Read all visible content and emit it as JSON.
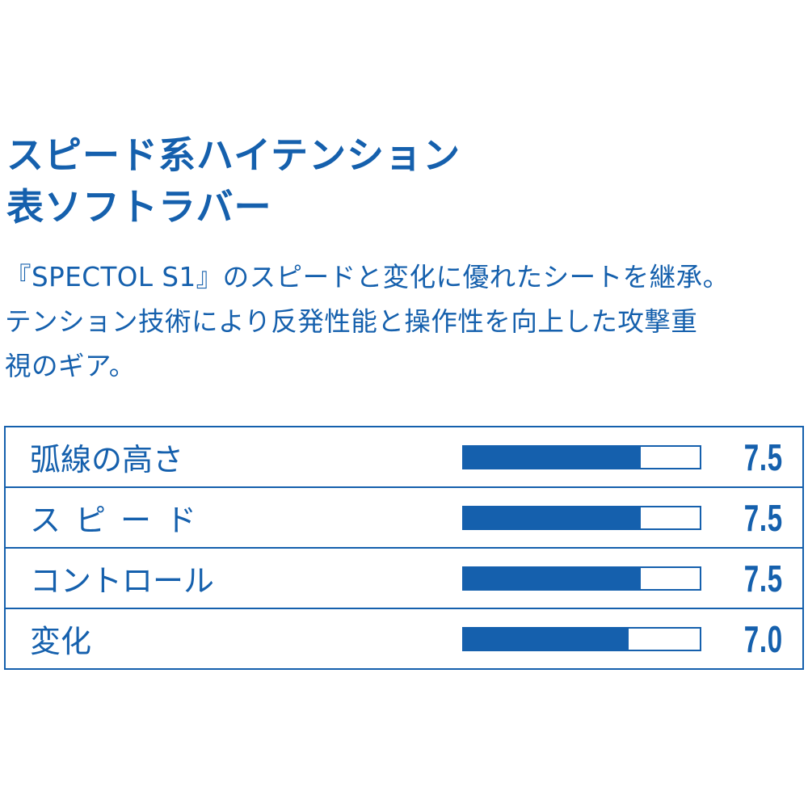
{
  "headline": {
    "line1": "スピード系ハイテンション",
    "line2": "表ソフトラバー"
  },
  "description": {
    "line1": "『SPECTOL S1』のスピードと変化に優れたシートを継承。",
    "line2": "テンション技術により反発性能と操作性を向上した攻撃重",
    "line3": "視のギア。"
  },
  "specs": {
    "scale_max": 10,
    "items": [
      {
        "label": "弧線の高さ",
        "value": "7.5",
        "level": 7.5
      },
      {
        "label": "スピード",
        "value": "7.5",
        "level": 7.5
      },
      {
        "label": "コントロール",
        "value": "7.5",
        "level": 7.5
      },
      {
        "label": "変化",
        "value": "7.0",
        "level": 7.0
      }
    ]
  },
  "colors": {
    "accent": "#1560ad",
    "background": "#ffffff"
  }
}
